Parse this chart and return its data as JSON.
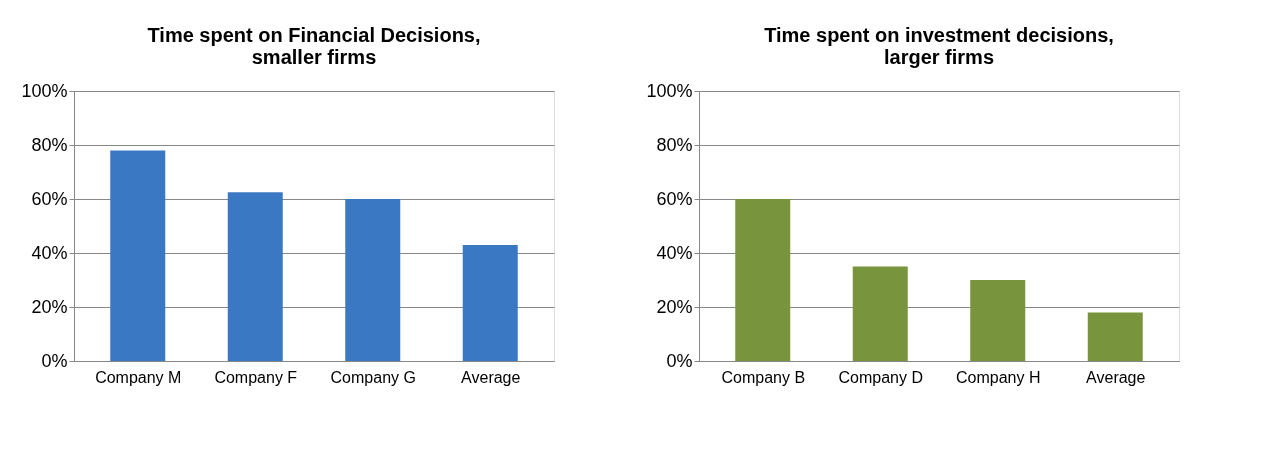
{
  "chart_data": [
    {
      "type": "bar",
      "title": [
        "Time spent on Financial Decisions,",
        "smaller firms"
      ],
      "categories": [
        "Company M",
        "Company F",
        "Company G",
        "Average"
      ],
      "values": [
        78,
        62.5,
        60,
        43
      ],
      "color": "#3a78c4",
      "ylim": [
        0,
        100
      ],
      "yticks": [
        {
          "value": 0,
          "label": "0%"
        },
        {
          "value": 20,
          "label": "20%"
        },
        {
          "value": 40,
          "label": "40%"
        },
        {
          "value": 60,
          "label": "60%"
        },
        {
          "value": 80,
          "label": "80%"
        },
        {
          "value": 100,
          "label": "100%"
        }
      ],
      "grid": "y"
    },
    {
      "type": "bar",
      "title": [
        "Time spent on investment decisions,",
        "larger firms"
      ],
      "categories": [
        "Company B",
        "Company D",
        "Company H",
        "Average"
      ],
      "values": [
        60,
        35,
        30,
        18
      ],
      "color": "#78953d",
      "ylim": [
        0,
        100
      ],
      "yticks": [
        {
          "value": 0,
          "label": "0%"
        },
        {
          "value": 20,
          "label": "20%"
        },
        {
          "value": 40,
          "label": "40%"
        },
        {
          "value": 60,
          "label": "60%"
        },
        {
          "value": 80,
          "label": "80%"
        },
        {
          "value": 100,
          "label": "100%"
        }
      ],
      "grid": "y"
    }
  ]
}
